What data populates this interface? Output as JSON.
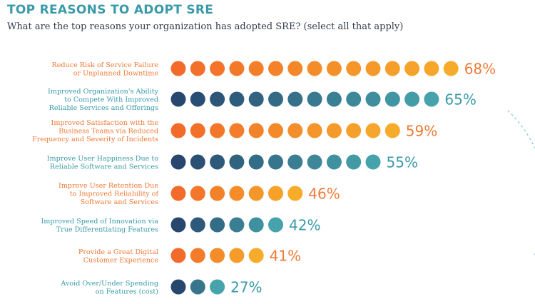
{
  "header": {
    "title": "TOP REASONS TO ADOPT SRE",
    "subtitle": "What are the top reasons your organization has adopted SRE? (select all that apply)"
  },
  "colors": {
    "orange_start": "#f26b2a",
    "orange_end": "#f6ac2a",
    "teal_start": "#27476e",
    "teal_end": "#46a3ab",
    "orange_text": "#ef7a36",
    "teal_text": "#3a9aa7",
    "dashed_arc": "#8fd0d7"
  },
  "chart_data": {
    "type": "bar",
    "title": "TOP REASONS TO ADOPT SRE",
    "xlabel": "",
    "ylabel": "",
    "unit": "%",
    "categories": [
      [
        "Reduce Risk of Service Failure",
        "or Unplanned Downtime"
      ],
      [
        "Improved Organization's Ability",
        "to Compete With Improved",
        "Reliable Services and Offerings"
      ],
      [
        "Improved Satisfaction with the",
        "Business Teams via Reduced",
        "Frequency and Severity of Incidents"
      ],
      [
        "Improve User Happiness Due to",
        "Reliable Software and Services"
      ],
      [
        "Improve User Retention Due",
        "to Improved Reliability of",
        "Software and Services"
      ],
      [
        "Improved Speed of Innovation via",
        "True Differentiating Features"
      ],
      [
        "Provide a Great Digital",
        "Customer Experience"
      ],
      [
        "Avoid Over/Under Spending",
        "on Features (cost)"
      ]
    ],
    "values": [
      68,
      65,
      59,
      55,
      46,
      42,
      41,
      27
    ],
    "value_labels": [
      "68%",
      "65%",
      "59%",
      "55%",
      "46%",
      "42%",
      "41%",
      "27%"
    ],
    "dot_counts": [
      15,
      14,
      12,
      11,
      7,
      6,
      5,
      3
    ],
    "palette": [
      "orange",
      "teal",
      "orange",
      "teal",
      "orange",
      "teal",
      "orange",
      "teal"
    ]
  }
}
